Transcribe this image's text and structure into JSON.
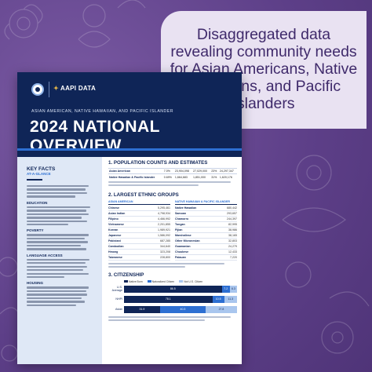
{
  "headline": "Disaggregated data revealing community needs for Asian Americans, Native Hawaiians, and Pacific Islanders",
  "document": {
    "logo_text": "AAPI DATA",
    "subtitle": "ASIAN AMERICAN, NATIVE HAWAIIAN, AND PACIFIC ISLANDER",
    "title": "2024 NATIONAL OVERVIEW",
    "key_facts": {
      "title": "KEY FACTS",
      "subtitle": "AT-A-GLANCE",
      "sections": [
        "EDUCATION",
        "POVERTY",
        "LANGUAGE ACCESS",
        "HOUSING"
      ]
    },
    "population": {
      "section_title": "1. POPULATION COUNTS AND ESTIMATES",
      "rows": [
        {
          "label": "Asian American",
          "share": "7.0%",
          "v1": "23,904,098",
          "v2": "27,029,000",
          "v3": "23%",
          "v4": "24,297,347"
        },
        {
          "label": "Native Hawaiian & Pacific Islander",
          "share": "0.69%",
          "v1": "1,664,683",
          "v2": "1,851,000",
          "v3": "31%",
          "v4": "1,620,176"
        }
      ]
    },
    "ethnic_groups": {
      "section_title": "2. LARGEST ETHNIC GROUPS",
      "asian_header": "ASIAN AMERICAN",
      "nhpi_header": "NATIVE HAWAIIAN & PACIFIC ISLANDER",
      "asian": [
        {
          "name": "Chinese",
          "value": "5,295,461"
        },
        {
          "name": "Asian Indian",
          "value": "4,798,934"
        },
        {
          "name": "Filipino",
          "value": "4,466,992"
        },
        {
          "name": "Vietnamese",
          "value": "2,201,855"
        },
        {
          "name": "Korean",
          "value": "1,989,921"
        },
        {
          "name": "Japanese",
          "value": "1,586,092"
        },
        {
          "name": "Pakistani",
          "value": "687,285"
        },
        {
          "name": "Cambodian",
          "value": "344,640"
        },
        {
          "name": "Hmong",
          "value": "323,208"
        },
        {
          "name": "Taiwanese",
          "value": "228,800"
        }
      ],
      "nhpi": [
        {
          "name": "Native Hawaiian",
          "value": "680,442"
        },
        {
          "name": "Samoan",
          "value": "293,657"
        },
        {
          "name": "Chamorro",
          "value": "244,397"
        },
        {
          "name": "Tongan",
          "value": "82,995"
        },
        {
          "name": "Fijian",
          "value": "38,986"
        },
        {
          "name": "Marshallese",
          "value": "38,165"
        },
        {
          "name": "Other Micronesian",
          "value": "32,803"
        },
        {
          "name": "Guamanian",
          "value": "24,279"
        },
        {
          "name": "Chuukese",
          "value": "12,433"
        },
        {
          "name": "Palauan",
          "value": "7,220"
        }
      ]
    },
    "citizenship": {
      "section_title": "3. CITIZENSHIP",
      "legend": [
        "Native Born",
        "Naturalized Citizen",
        "Not U.S. Citizen"
      ],
      "bars": [
        {
          "label": "U.S. Average",
          "values": [
            "86.5",
            "7.2",
            "6.3"
          ]
        },
        {
          "label": "NHPI",
          "values": [
            "78.1",
            "10.5",
            "11.3"
          ]
        },
        {
          "label": "Asian",
          "values": [
            "31.9",
            "40.3",
            "27.8"
          ]
        }
      ]
    }
  }
}
